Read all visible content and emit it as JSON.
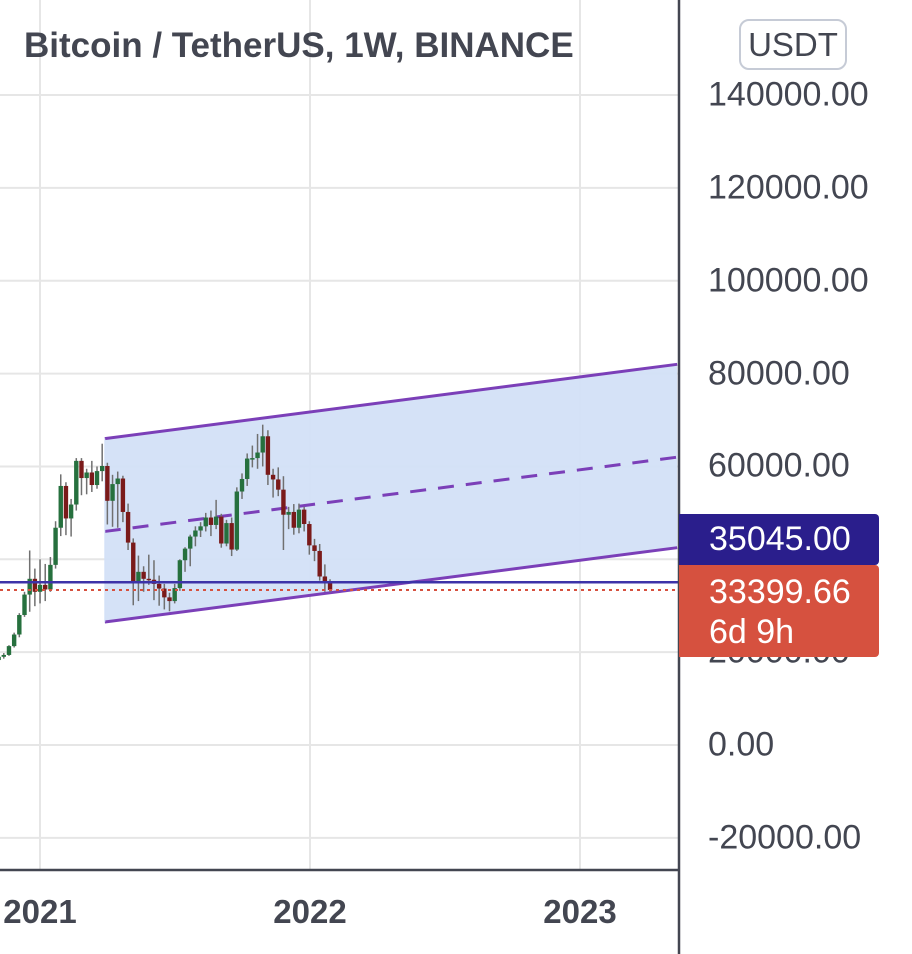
{
  "header": {
    "title": "Bitcoin / TetherUS, 1W, BINANCE",
    "currency": "USDT"
  },
  "colors": {
    "bull": "#26703e",
    "bear": "#7a1a1a",
    "channel_line": "#7b3fb8",
    "channel_fill": "#d3e0f7",
    "horizontal_line": "#3d33a8",
    "last_price_line": "#d6513f",
    "axis": "#434651",
    "grid": "#e6e6e6"
  },
  "price_tags": {
    "channel_value": "35045.00",
    "last_price": "33399.66",
    "countdown": "6d 9h"
  },
  "chart_data": {
    "type": "candlestick",
    "title": "Bitcoin / TetherUS, 1W, BINANCE",
    "y_axis_side": "right",
    "ylim": [
      -26000,
      150000
    ],
    "y_ticks": [
      "140000.00",
      "120000.00",
      "100000.00",
      "80000.00",
      "60000.00",
      "20000.00",
      "0.00",
      "-20000.00"
    ],
    "y_tick_values": [
      140000,
      120000,
      100000,
      80000,
      60000,
      20000,
      0,
      -20000
    ],
    "x_ticks": [
      "2021",
      "2022",
      "2023"
    ],
    "x_tick_values": [
      2021.0,
      2022.0,
      2023.0
    ],
    "grid": true,
    "series": [
      {
        "type": "ohlc",
        "x_start": 2020.77,
        "x_step": 0.01918,
        "bars": [
          [
            15500,
            16400,
            15200,
            16200
          ],
          [
            16200,
            17000,
            15800,
            16600
          ],
          [
            16600,
            17600,
            16300,
            17300
          ],
          [
            17300,
            18600,
            17000,
            18300
          ],
          [
            18300,
            19300,
            17600,
            19000
          ],
          [
            19000,
            19800,
            18600,
            19400
          ],
          [
            19400,
            21500,
            19200,
            21300
          ],
          [
            21300,
            24200,
            21000,
            23800
          ],
          [
            23800,
            28400,
            23200,
            28000
          ],
          [
            28000,
            33000,
            27600,
            32400
          ],
          [
            32400,
            41900,
            28700,
            35800
          ],
          [
            35800,
            38000,
            29900,
            33000
          ],
          [
            33000,
            40000,
            30500,
            34500
          ],
          [
            34500,
            39000,
            31000,
            33500
          ],
          [
            33500,
            40500,
            33000,
            38800
          ],
          [
            38800,
            48200,
            38000,
            46800
          ],
          [
            46800,
            58300,
            45000,
            55800
          ],
          [
            55800,
            56600,
            45200,
            48800
          ],
          [
            48800,
            53000,
            44900,
            51800
          ],
          [
            51800,
            61800,
            50500,
            61200
          ],
          [
            61200,
            61800,
            53800,
            57500
          ],
          [
            57500,
            59500,
            54000,
            58700
          ],
          [
            58700,
            61200,
            54500,
            56000
          ],
          [
            56000,
            60000,
            55200,
            59000
          ],
          [
            59000,
            64900,
            56800,
            60100
          ],
          [
            60100,
            60800,
            47500,
            52600
          ],
          [
            52600,
            58200,
            47000,
            56200
          ],
          [
            56200,
            58900,
            46800,
            57400
          ],
          [
            57400,
            58000,
            48000,
            50200
          ],
          [
            50200,
            52000,
            42000,
            43600
          ],
          [
            43600,
            44500,
            30100,
            34800
          ],
          [
            34800,
            40800,
            31000,
            37300
          ],
          [
            37300,
            38500,
            33000,
            35800
          ],
          [
            35800,
            41000,
            34500,
            35600
          ],
          [
            35600,
            39800,
            31200,
            34700
          ],
          [
            34700,
            36500,
            30000,
            33700
          ],
          [
            33700,
            34700,
            29200,
            31800
          ],
          [
            31800,
            32800,
            28800,
            31000
          ],
          [
            31000,
            34700,
            30500,
            33800
          ],
          [
            33800,
            40000,
            33200,
            39800
          ],
          [
            39800,
            42600,
            37300,
            42300
          ],
          [
            42300,
            45300,
            38500,
            44900
          ],
          [
            44900,
            47100,
            42800,
            46200
          ],
          [
            46200,
            48000,
            44800,
            47100
          ],
          [
            47100,
            50000,
            46000,
            49000
          ],
          [
            49000,
            50500,
            45000,
            47400
          ],
          [
            47400,
            52800,
            46500,
            49200
          ],
          [
            49200,
            49800,
            42500,
            43400
          ],
          [
            43400,
            48500,
            42800,
            47800
          ],
          [
            47800,
            49000,
            40700,
            42100
          ],
          [
            42100,
            55500,
            41800,
            54600
          ],
          [
            54600,
            58500,
            53000,
            57300
          ],
          [
            57300,
            62800,
            55800,
            61700
          ],
          [
            61700,
            64500,
            59800,
            61800
          ],
          [
            61800,
            67000,
            59500,
            63000
          ],
          [
            63000,
            69000,
            60000,
            66500
          ],
          [
            66500,
            67800,
            56000,
            58200
          ],
          [
            58200,
            59500,
            53300,
            57200
          ],
          [
            57200,
            59800,
            53600,
            55000
          ],
          [
            55000,
            57900,
            42000,
            49600
          ],
          [
            49600,
            51300,
            46500,
            50200
          ],
          [
            50200,
            51900,
            45300,
            46800
          ],
          [
            46800,
            52000,
            45600,
            50700
          ],
          [
            50700,
            51300,
            46000,
            47600
          ],
          [
            47600,
            48200,
            41000,
            43000
          ],
          [
            43000,
            44400,
            39600,
            41800
          ],
          [
            41800,
            43300,
            35400,
            36300
          ],
          [
            36300,
            38900,
            33000,
            35100
          ],
          [
            35100,
            35700,
            32900,
            33400
          ]
        ]
      },
      {
        "type": "parallel_channel",
        "x_range": [
          2021.24,
          2023.36
        ],
        "upper": [
          66000,
          82000
        ],
        "middle": [
          46000,
          62000
        ],
        "lower": [
          26500,
          42500
        ]
      },
      {
        "type": "horizontal_line",
        "value": 35045.0
      },
      {
        "type": "last_price_line",
        "value": 33399.66
      }
    ]
  }
}
